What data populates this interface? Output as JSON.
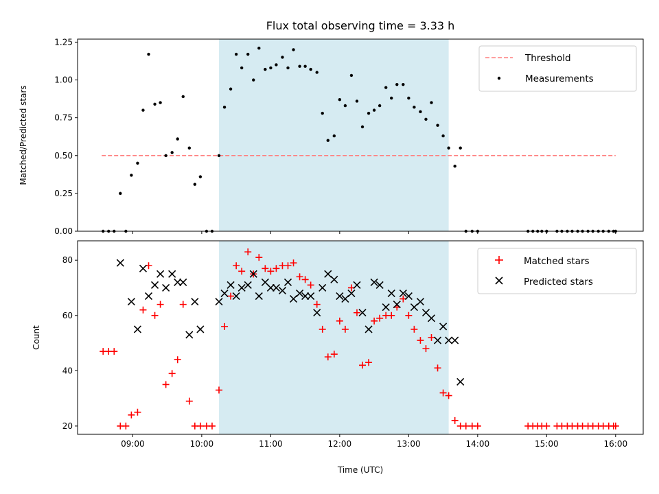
{
  "chart_data": [
    {
      "type": "scatter",
      "title": "Flux total observing time = 3.33 h",
      "xlabel": "",
      "ylabel": "Matched/Predicted stars",
      "ylim": [
        0,
        1.27
      ],
      "yticks": [
        "0.00",
        "0.25",
        "0.50",
        "0.75",
        "1.00",
        "1.25"
      ],
      "ytick_values": [
        0,
        0.25,
        0.5,
        0.75,
        1.0,
        1.25
      ],
      "x_unit": "hours UTC",
      "xlim": [
        8.2,
        16.4
      ],
      "shaded_interval": [
        10.25,
        13.58
      ],
      "legend_position": "top-right",
      "threshold": {
        "name": "Threshold",
        "value": 0.5,
        "x": [
          8.55,
          16.0
        ],
        "color": "#ff7f7f",
        "style": "dashed"
      },
      "series": [
        {
          "name": "Measurements",
          "marker": "dot",
          "color": "#000000",
          "x": [
            8.57,
            8.65,
            8.73,
            8.82,
            8.9,
            8.98,
            9.07,
            9.15,
            9.23,
            9.32,
            9.4,
            9.48,
            9.57,
            9.65,
            9.73,
            9.82,
            9.9,
            9.98,
            10.07,
            10.15,
            10.25,
            10.33,
            10.42,
            10.5,
            10.58,
            10.67,
            10.75,
            10.83,
            10.92,
            11.0,
            11.08,
            11.17,
            11.25,
            11.33,
            11.42,
            11.5,
            11.58,
            11.67,
            11.75,
            11.83,
            11.92,
            12.0,
            12.08,
            12.17,
            12.25,
            12.33,
            12.42,
            12.5,
            12.58,
            12.67,
            12.75,
            12.83,
            12.92,
            13.0,
            13.08,
            13.17,
            13.25,
            13.33,
            13.42,
            13.5,
            13.58,
            13.67,
            13.75,
            13.83,
            13.92,
            14.0,
            14.73,
            14.8,
            14.87,
            14.93,
            15.0,
            15.15,
            15.22,
            15.3,
            15.37,
            15.45,
            15.52,
            15.6,
            15.67,
            15.75,
            15.82,
            15.9,
            15.97,
            16.0
          ],
          "y": [
            0.0,
            0.0,
            0.0,
            0.25,
            0.0,
            0.37,
            0.45,
            0.8,
            1.17,
            0.84,
            0.85,
            0.5,
            0.52,
            0.61,
            0.89,
            0.55,
            0.31,
            0.36,
            0.0,
            0.0,
            0.5,
            0.82,
            0.94,
            1.17,
            1.08,
            1.17,
            1.0,
            1.21,
            1.07,
            1.08,
            1.1,
            1.15,
            1.08,
            1.2,
            1.09,
            1.09,
            1.07,
            1.05,
            0.78,
            0.6,
            0.63,
            0.87,
            0.83,
            1.03,
            0.86,
            0.69,
            0.78,
            0.8,
            0.83,
            0.95,
            0.88,
            0.97,
            0.97,
            0.88,
            0.82,
            0.79,
            0.74,
            0.85,
            0.7,
            0.63,
            0.55,
            0.43,
            0.55,
            0.0,
            0.0,
            0.0,
            0.0,
            0.0,
            0.0,
            0.0,
            0.0,
            0.0,
            0.0,
            0.0,
            0.0,
            0.0,
            0.0,
            0.0,
            0.0,
            0.0,
            0.0,
            0.0,
            0.0,
            0.0
          ]
        }
      ]
    },
    {
      "type": "scatter",
      "title": "",
      "xlabel": "Time (UTC)",
      "ylabel": "Count",
      "ylim": [
        17,
        87
      ],
      "yticks": [
        "20",
        "40",
        "60",
        "80"
      ],
      "ytick_values": [
        20,
        40,
        60,
        80
      ],
      "xticks": [
        "09:00",
        "10:00",
        "11:00",
        "12:00",
        "13:00",
        "14:00",
        "15:00",
        "16:00"
      ],
      "xtick_values": [
        9,
        10,
        11,
        12,
        13,
        14,
        15,
        16
      ],
      "x_unit": "hours UTC",
      "xlim": [
        8.2,
        16.4
      ],
      "shaded_interval": [
        10.25,
        13.58
      ],
      "legend_position": "top-right",
      "series": [
        {
          "name": "Matched stars",
          "marker": "plus",
          "color": "#ff0000",
          "x": [
            8.57,
            8.65,
            8.73,
            8.82,
            8.9,
            8.98,
            9.07,
            9.15,
            9.23,
            9.32,
            9.4,
            9.48,
            9.57,
            9.65,
            9.73,
            9.82,
            9.9,
            9.98,
            10.07,
            10.15,
            10.25,
            10.33,
            10.42,
            10.5,
            10.58,
            10.67,
            10.75,
            10.83,
            10.92,
            11.0,
            11.08,
            11.17,
            11.25,
            11.33,
            11.42,
            11.5,
            11.58,
            11.67,
            11.75,
            11.83,
            11.92,
            12.0,
            12.08,
            12.17,
            12.25,
            12.33,
            12.42,
            12.5,
            12.58,
            12.67,
            12.75,
            12.83,
            12.92,
            13.0,
            13.08,
            13.17,
            13.25,
            13.33,
            13.42,
            13.5,
            13.58,
            13.67,
            13.75,
            13.83,
            13.92,
            14.0,
            14.73,
            14.8,
            14.87,
            14.93,
            15.0,
            15.15,
            15.22,
            15.3,
            15.37,
            15.45,
            15.52,
            15.6,
            15.67,
            15.75,
            15.82,
            15.9,
            15.97,
            16.0
          ],
          "y": [
            47,
            47,
            47,
            20,
            20,
            24,
            25,
            62,
            78,
            60,
            64,
            35,
            39,
            44,
            64,
            29,
            20,
            20,
            20,
            20,
            33,
            56,
            67,
            78,
            76,
            83,
            75,
            81,
            77,
            76,
            77,
            78,
            78,
            79,
            74,
            73,
            71,
            64,
            55,
            45,
            46,
            58,
            55,
            70,
            61,
            42,
            43,
            58,
            59,
            60,
            60,
            63,
            66,
            60,
            55,
            51,
            48,
            52,
            41,
            32,
            31,
            22,
            20,
            20,
            20,
            20,
            20,
            20,
            20,
            20,
            20,
            20,
            20,
            20,
            20,
            20,
            20,
            20,
            20,
            20,
            20,
            20,
            20,
            20
          ]
        },
        {
          "name": "Predicted stars",
          "marker": "cross",
          "color": "#000000",
          "x": [
            8.82,
            8.98,
            9.07,
            9.15,
            9.23,
            9.32,
            9.4,
            9.48,
            9.57,
            9.65,
            9.73,
            9.82,
            9.9,
            9.98,
            10.25,
            10.33,
            10.42,
            10.5,
            10.58,
            10.67,
            10.75,
            10.83,
            10.92,
            11.0,
            11.08,
            11.17,
            11.25,
            11.33,
            11.42,
            11.5,
            11.58,
            11.67,
            11.75,
            11.83,
            11.92,
            12.0,
            12.08,
            12.17,
            12.25,
            12.33,
            12.42,
            12.5,
            12.58,
            12.67,
            12.75,
            12.83,
            12.92,
            13.0,
            13.08,
            13.17,
            13.25,
            13.33,
            13.42,
            13.5,
            13.58,
            13.67,
            13.75
          ],
          "y": [
            79,
            65,
            55,
            77,
            67,
            71,
            75,
            70,
            75,
            72,
            72,
            53,
            65,
            55,
            65,
            68,
            71,
            67,
            70,
            71,
            75,
            67,
            72,
            70,
            70,
            69,
            72,
            66,
            68,
            67,
            67,
            61,
            70,
            75,
            73,
            67,
            66,
            68,
            71,
            61,
            55,
            72,
            71,
            63,
            68,
            64,
            68,
            67,
            63,
            65,
            61,
            59,
            51,
            56,
            51,
            51,
            36
          ]
        }
      ]
    }
  ]
}
